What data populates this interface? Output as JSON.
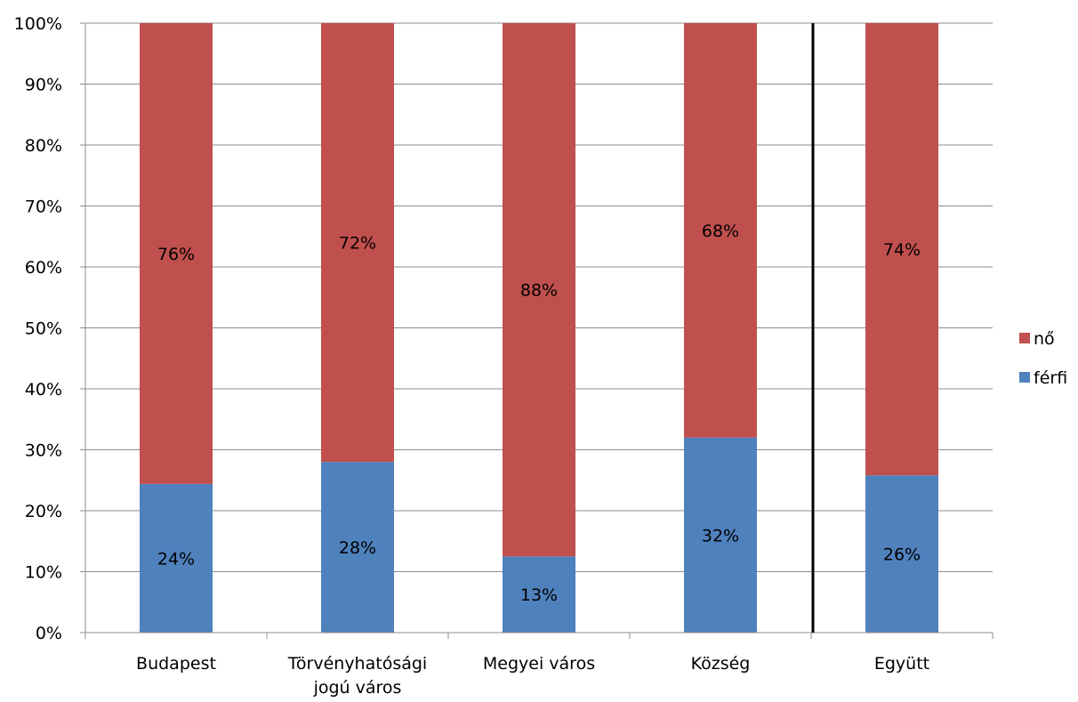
{
  "chart_data": {
    "type": "bar",
    "stacked": true,
    "categories": [
      [
        "Budapest"
      ],
      [
        "Törvényhatósági",
        "jogú város"
      ],
      [
        "Megyei város"
      ],
      [
        "Község"
      ],
      [
        "Együtt"
      ]
    ],
    "series": [
      {
        "name": "férfi",
        "color": "#4f81bd",
        "values": [
          24.4,
          28,
          12.5,
          32,
          25.8
        ],
        "labels": [
          "24%",
          "28%",
          "13%",
          "32%",
          "26%"
        ]
      },
      {
        "name": "nő",
        "color": "#c0504d",
        "values": [
          75.6,
          72,
          87.5,
          68,
          74.2
        ],
        "labels": [
          "76%",
          "72%",
          "88%",
          "68%",
          "74%"
        ]
      }
    ],
    "ylim": [
      0,
      100
    ],
    "yticks": [
      "0%",
      "10%",
      "20%",
      "30%",
      "40%",
      "50%",
      "60%",
      "70%",
      "80%",
      "90%",
      "100%"
    ],
    "grid": true,
    "legend": {
      "position": "right",
      "order": [
        "nő",
        "férfi"
      ]
    },
    "separator_before_category": 4
  }
}
